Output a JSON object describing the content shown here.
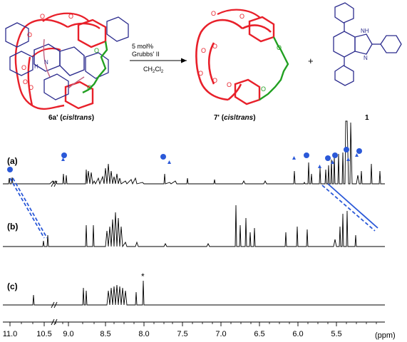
{
  "scheme": {
    "reactant_label": {
      "prefix": "6a' (",
      "cis": "cis",
      "slash": "/",
      "trans": "trans",
      "suffix": ")"
    },
    "product_label": {
      "prefix": "7' (",
      "cis": "cis",
      "slash": "/",
      "trans": "trans",
      "suffix": ")"
    },
    "byproduct_label": "1",
    "plus": "+",
    "conditions": [
      "5 mol%",
      "Grubbs' II",
      "CH2Cl2"
    ],
    "atom_O": "O",
    "atom_N": "N",
    "atom_H": "H",
    "atom_NH": "NH",
    "colors": {
      "crown": "#e8202a",
      "alkene_chain": "#22a022",
      "ring": "#2c2c8e",
      "ring_faint": "#c06080"
    }
  },
  "spectra": {
    "traces": [
      {
        "label": "(a)"
      },
      {
        "label": "(b)"
      },
      {
        "label": "(c)"
      }
    ],
    "marker_color": "#2b59d8",
    "impurity_mark": "*",
    "axis": {
      "unit": "(ppm)",
      "ticks": [
        "11.0",
        "10.5",
        "9.0",
        "8.5",
        "8.0",
        "7.5",
        "7.0",
        "6.5",
        "6.0",
        "5.5"
      ]
    }
  }
}
